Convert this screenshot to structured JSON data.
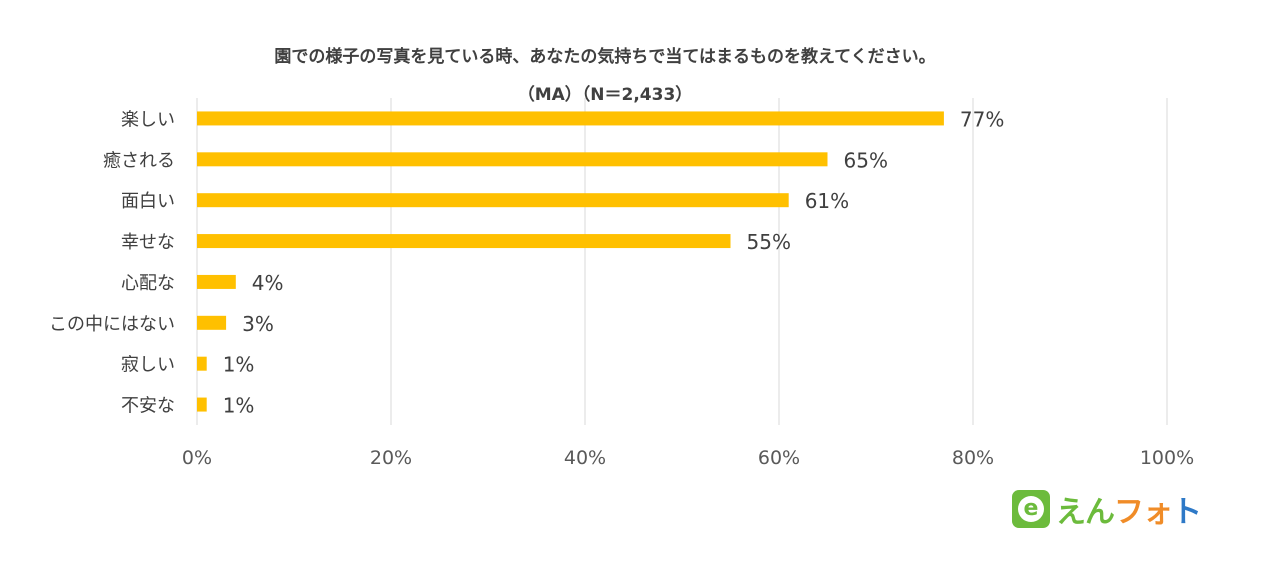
{
  "chart_data": {
    "type": "bar",
    "orientation": "horizontal",
    "title": "園での様子の写真を見ている時、あなたの気持ちで当てはまるものを教えてください。",
    "subtitle": "（MA）（N＝2,433）",
    "categories": [
      "楽しい",
      "癒される",
      "面白い",
      "幸せな",
      "心配な",
      "この中にはない",
      "寂しい",
      "不安な"
    ],
    "values": [
      77,
      65,
      61,
      55,
      4,
      3,
      1,
      1
    ],
    "data_labels": [
      "77%",
      "65%",
      "61%",
      "55%",
      "4%",
      "3%",
      "1%",
      "1%"
    ],
    "xlim": [
      0,
      100
    ],
    "xticks": [
      "0%",
      "20%",
      "40%",
      "60%",
      "80%",
      "100%"
    ],
    "grid": true,
    "bar_color": "#ffc000",
    "grid_color": "#d9d9d9"
  },
  "logo": {
    "badge_letter": "e",
    "text_parts": [
      {
        "text": "えん",
        "color": "#6cbb3c"
      },
      {
        "text": "フォ",
        "color": "#f08c28"
      },
      {
        "text": "ト",
        "color": "#2e79c7"
      }
    ]
  }
}
